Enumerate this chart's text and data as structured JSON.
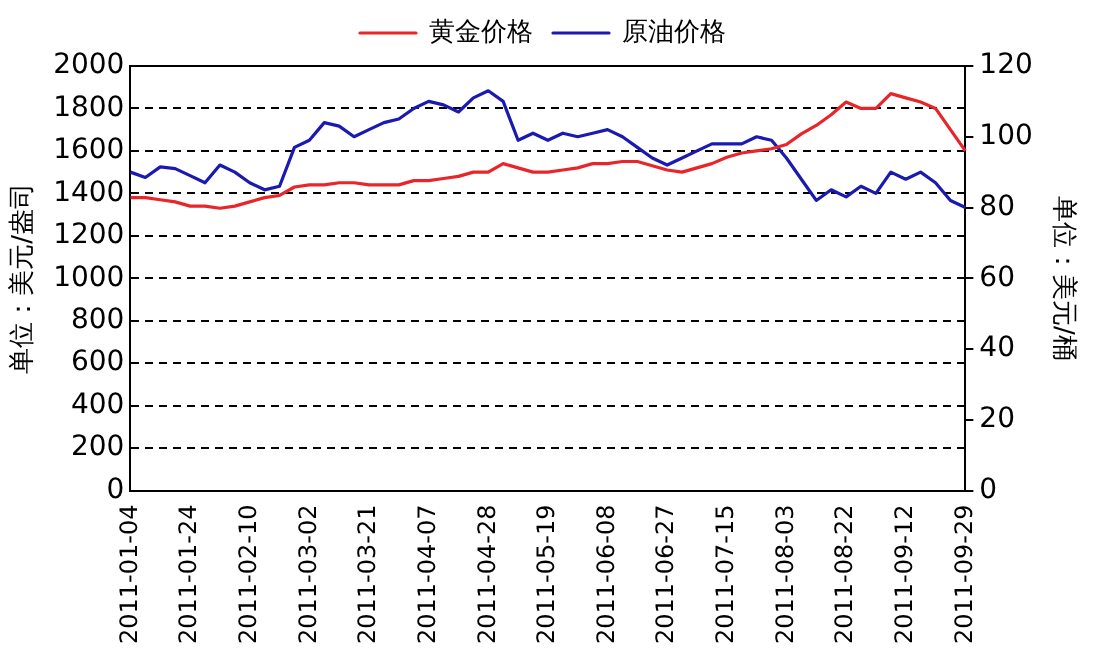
{
  "chart_data": {
    "type": "line",
    "ylabel": "单位：美元/盎司",
    "y2label": "单位：美元/桶",
    "categories": [
      "2011-01-04",
      null,
      null,
      null,
      "2011-01-24",
      null,
      null,
      null,
      "2011-02-10",
      null,
      null,
      null,
      "2011-03-02",
      null,
      null,
      null,
      "2011-03-21",
      null,
      null,
      null,
      "2011-04-07",
      null,
      null,
      null,
      "2011-04-28",
      null,
      null,
      null,
      "2011-05-19",
      null,
      null,
      null,
      "2011-06-08",
      null,
      null,
      null,
      "2011-06-27",
      null,
      null,
      null,
      "2011-07-15",
      null,
      null,
      null,
      "2011-08-03",
      null,
      null,
      null,
      "2011-08-22",
      null,
      null,
      null,
      "2011-09-12",
      null,
      null,
      null,
      "2011-09-29"
    ],
    "series": [
      {
        "name": "黄金价格",
        "color": "#e8262a",
        "values": [
          1380,
          1380,
          1370,
          1360,
          1340,
          1340,
          1330,
          1340,
          1360,
          1380,
          1390,
          1430,
          1440,
          1440,
          1450,
          1450,
          1440,
          1440,
          1440,
          1460,
          1460,
          1470,
          1480,
          1500,
          1500,
          1540,
          1520,
          1500,
          1500,
          1510,
          1520,
          1540,
          1540,
          1550,
          1550,
          1530,
          1510,
          1500,
          1520,
          1540,
          1570,
          1590,
          1600,
          1610,
          1630,
          1680,
          1720,
          1770,
          1830,
          1800,
          1800,
          1870,
          1850,
          1830,
          1800,
          1700,
          1600
        ]
      },
      {
        "name": "原油价格",
        "color": "#1a1ab0",
        "axis": "y2",
        "values": [
          90,
          88.5,
          91.5,
          91,
          89,
          87,
          92,
          90,
          87,
          85,
          86,
          97,
          99,
          104,
          103,
          100,
          102,
          104,
          105,
          108,
          110,
          109,
          107,
          111,
          113,
          110,
          99,
          101,
          99,
          101,
          100,
          101,
          102,
          100,
          97,
          94,
          92,
          94,
          96,
          98,
          98,
          98,
          100,
          99,
          94,
          88,
          82,
          85,
          83,
          86,
          84,
          90,
          88,
          90,
          87,
          82,
          80
        ]
      }
    ],
    "ylim": [
      0,
      2000
    ],
    "yticks": [
      0,
      200,
      400,
      600,
      800,
      1000,
      1200,
      1400,
      1600,
      1800,
      2000
    ],
    "y2lim": [
      0,
      120
    ],
    "y2ticks": [
      0,
      20,
      40,
      60,
      80,
      100,
      120
    ],
    "grid": "y",
    "legend": "top",
    "marker": "none"
  }
}
